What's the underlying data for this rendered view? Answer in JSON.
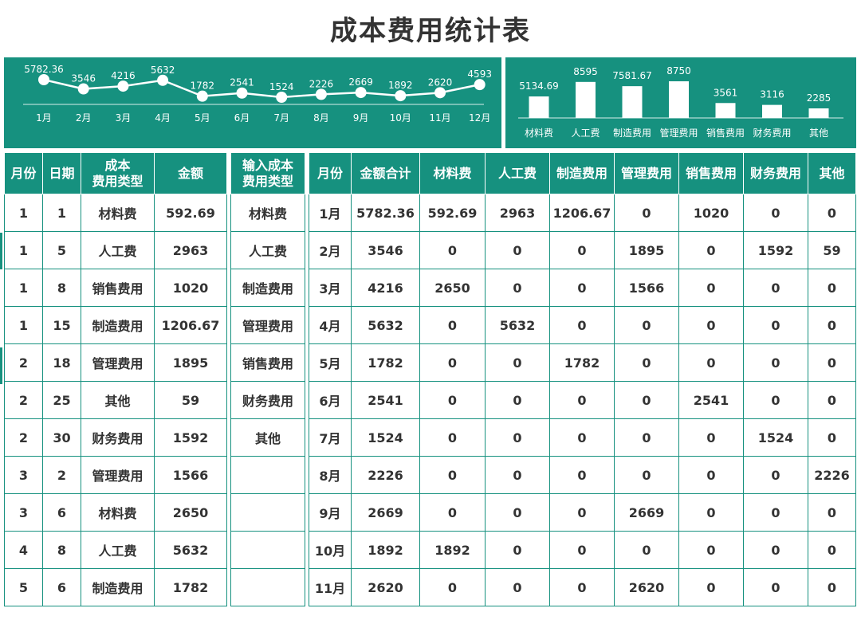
{
  "title": "成本费用统计表",
  "colors": {
    "accent": "#16917f",
    "text": "#333333"
  },
  "line_chart": {
    "type": "line",
    "categories": [
      "1月",
      "2月",
      "3月",
      "4月",
      "5月",
      "6月",
      "7月",
      "8月",
      "9月",
      "10月",
      "11月",
      "12月"
    ],
    "values": [
      5782.36,
      3546,
      4216,
      5632,
      1782,
      2541,
      1524,
      2226,
      2669,
      1892,
      2620,
      4593
    ],
    "labels": [
      "5782.36",
      "3546",
      "4216",
      "5632",
      "1782",
      "2541",
      "1524",
      "2226",
      "2669",
      "1892",
      "2620",
      "4593"
    ]
  },
  "bar_chart": {
    "type": "bar",
    "categories": [
      "材料费",
      "人工费",
      "制造费用",
      "管理费用",
      "销售费用",
      "财务费用",
      "其他"
    ],
    "values": [
      5134.69,
      8595,
      7581.67,
      8750,
      3561,
      3116,
      2285
    ],
    "labels": [
      "5134.69",
      "8595",
      "7581.67",
      "8750",
      "3561",
      "3116",
      "2285"
    ]
  },
  "left_table": {
    "headers": [
      "月份",
      "日期",
      "成本\n费用类型",
      "金额"
    ],
    "rows": [
      [
        "1",
        "1",
        "材料费",
        "592.69"
      ],
      [
        "1",
        "5",
        "人工费",
        "2963"
      ],
      [
        "1",
        "8",
        "销售费用",
        "1020"
      ],
      [
        "1",
        "15",
        "制造费用",
        "1206.67"
      ],
      [
        "2",
        "18",
        "管理费用",
        "1895"
      ],
      [
        "2",
        "25",
        "其他",
        "59"
      ],
      [
        "2",
        "30",
        "财务费用",
        "1592"
      ],
      [
        "3",
        "2",
        "管理费用",
        "1566"
      ],
      [
        "3",
        "6",
        "材料费",
        "2650"
      ],
      [
        "4",
        "8",
        "人工费",
        "5632"
      ],
      [
        "5",
        "6",
        "制造费用",
        "1782"
      ]
    ]
  },
  "type_table": {
    "header": "输入成本\n费用类型",
    "rows": [
      "材料费",
      "人工费",
      "制造费用",
      "管理费用",
      "销售费用",
      "财务费用",
      "其他",
      "",
      "",
      "",
      ""
    ]
  },
  "summary_table": {
    "headers": [
      "月份",
      "金额合计",
      "材料费",
      "人工费",
      "制造费用",
      "管理费用",
      "销售费用",
      "财务费用",
      "其他"
    ],
    "rows": [
      [
        "1月",
        "5782.36",
        "592.69",
        "2963",
        "1206.67",
        "0",
        "1020",
        "0",
        "0"
      ],
      [
        "2月",
        "3546",
        "0",
        "0",
        "0",
        "1895",
        "0",
        "1592",
        "59"
      ],
      [
        "3月",
        "4216",
        "2650",
        "0",
        "0",
        "1566",
        "0",
        "0",
        "0"
      ],
      [
        "4月",
        "5632",
        "0",
        "5632",
        "0",
        "0",
        "0",
        "0",
        "0"
      ],
      [
        "5月",
        "1782",
        "0",
        "0",
        "1782",
        "0",
        "0",
        "0",
        "0"
      ],
      [
        "6月",
        "2541",
        "0",
        "0",
        "0",
        "0",
        "2541",
        "0",
        "0"
      ],
      [
        "7月",
        "1524",
        "0",
        "0",
        "0",
        "0",
        "0",
        "1524",
        "0"
      ],
      [
        "8月",
        "2226",
        "0",
        "0",
        "0",
        "0",
        "0",
        "0",
        "2226"
      ],
      [
        "9月",
        "2669",
        "0",
        "0",
        "0",
        "2669",
        "0",
        "0",
        "0"
      ],
      [
        "10月",
        "1892",
        "1892",
        "0",
        "0",
        "0",
        "0",
        "0",
        "0"
      ],
      [
        "11月",
        "2620",
        "0",
        "0",
        "0",
        "2620",
        "0",
        "0",
        "0"
      ]
    ]
  }
}
